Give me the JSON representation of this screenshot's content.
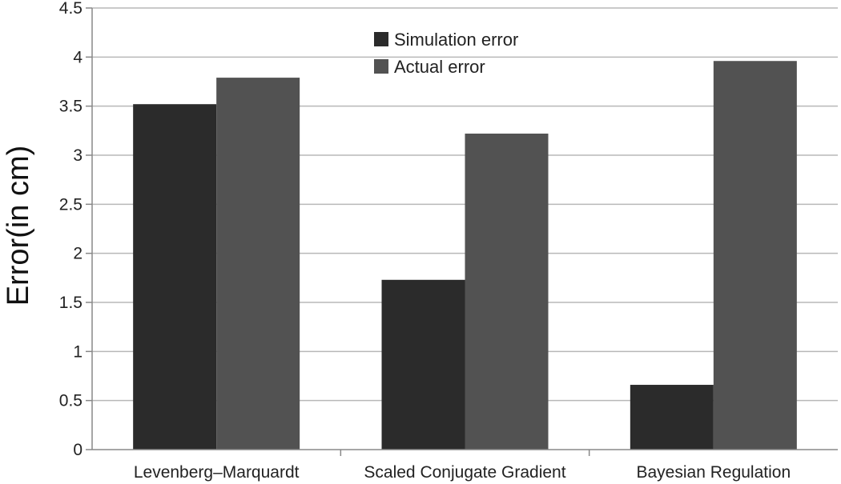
{
  "chart_data": {
    "type": "bar",
    "categories": [
      "Levenberg–Marquardt",
      "Scaled Conjugate Gradient",
      "Bayesian Regulation"
    ],
    "series": [
      {
        "name": "Simulation error",
        "values": [
          3.52,
          1.73,
          0.66
        ],
        "color": "#2b2b2b"
      },
      {
        "name": "Actual error",
        "values": [
          3.79,
          3.22,
          3.96
        ],
        "color": "#525252"
      }
    ],
    "title": "",
    "xlabel": "",
    "ylabel": "Error(in cm)",
    "ylim": [
      0,
      4.5
    ],
    "yticks": [
      "0",
      "0.5",
      "1",
      "1.5",
      "2",
      "2.5",
      "3",
      "3.5",
      "4",
      "4.5"
    ],
    "grid": true,
    "legend": "top-center"
  }
}
